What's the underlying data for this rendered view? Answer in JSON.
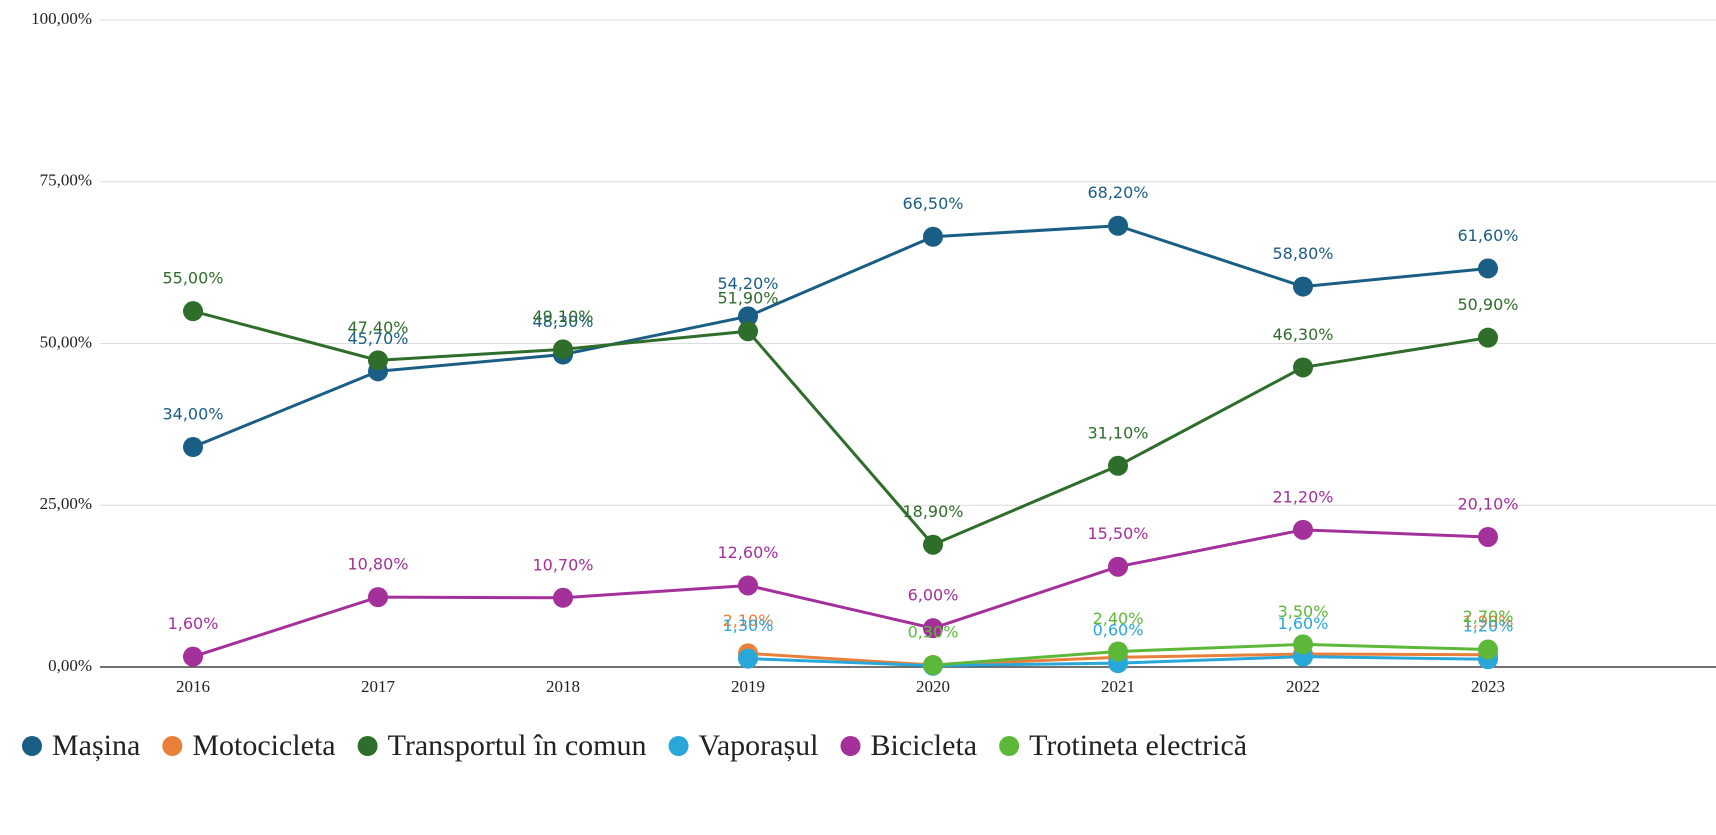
{
  "chart_data": {
    "type": "line",
    "categories": [
      "2016",
      "2017",
      "2018",
      "2019",
      "2020",
      "2021",
      "2022",
      "2023"
    ],
    "ylim": [
      0,
      100
    ],
    "yticks": [
      {
        "value": 0,
        "label": "0,00%"
      },
      {
        "value": 25,
        "label": "25,00%"
      },
      {
        "value": 50,
        "label": "50,00%"
      },
      {
        "value": 75,
        "label": "75,00%"
      },
      {
        "value": 100,
        "label": "100,00%"
      }
    ],
    "grid": true,
    "legend": "bottom",
    "series": [
      {
        "name": "Mașina",
        "color": "#1b5e85",
        "values": [
          34.0,
          45.7,
          48.3,
          54.2,
          66.5,
          68.2,
          58.8,
          61.6
        ],
        "value_labels": [
          "34,00%",
          "45,70%",
          "48,30%",
          "54,20%",
          "66,50%",
          "68,20%",
          "58,80%",
          "61,60%"
        ]
      },
      {
        "name": "Motocicleta",
        "color": "#e8803a",
        "values": [
          null,
          null,
          null,
          2.1,
          0.3,
          1.5,
          2.0,
          1.9
        ],
        "value_labels": [
          null,
          null,
          null,
          "2,10%",
          null,
          null,
          null,
          "1,90%"
        ]
      },
      {
        "name": "Transportul în comun",
        "color": "#2f6d2b",
        "values": [
          55.0,
          47.4,
          49.1,
          51.9,
          18.9,
          31.1,
          46.3,
          50.9
        ],
        "value_labels": [
          "55,00%",
          "47,40%",
          "49,10%",
          "51,90%",
          "18,90%",
          "31,10%",
          "46,30%",
          "50,90%"
        ]
      },
      {
        "name": "Vaporașul",
        "color": "#2aa7d9",
        "values": [
          null,
          null,
          null,
          1.3,
          0.2,
          0.6,
          1.6,
          1.2
        ],
        "value_labels": [
          null,
          null,
          null,
          "1,30%",
          null,
          "0,60%",
          "1,60%",
          "1,20%"
        ]
      },
      {
        "name": "Bicicleta",
        "color": "#a3309b",
        "values": [
          1.6,
          10.8,
          10.7,
          12.6,
          6.0,
          15.5,
          21.2,
          20.1
        ],
        "value_labels": [
          "1,60%",
          "10,80%",
          "10,70%",
          "12,60%",
          "6,00%",
          "15,50%",
          "21,20%",
          "20,10%"
        ]
      },
      {
        "name": "Trotineta electrică",
        "color": "#5db83a",
        "values": [
          null,
          null,
          null,
          null,
          0.3,
          2.4,
          3.5,
          2.7
        ],
        "value_labels": [
          null,
          null,
          null,
          null,
          "0,30%",
          "2,40%",
          "3,50%",
          "2,70%"
        ]
      }
    ]
  }
}
